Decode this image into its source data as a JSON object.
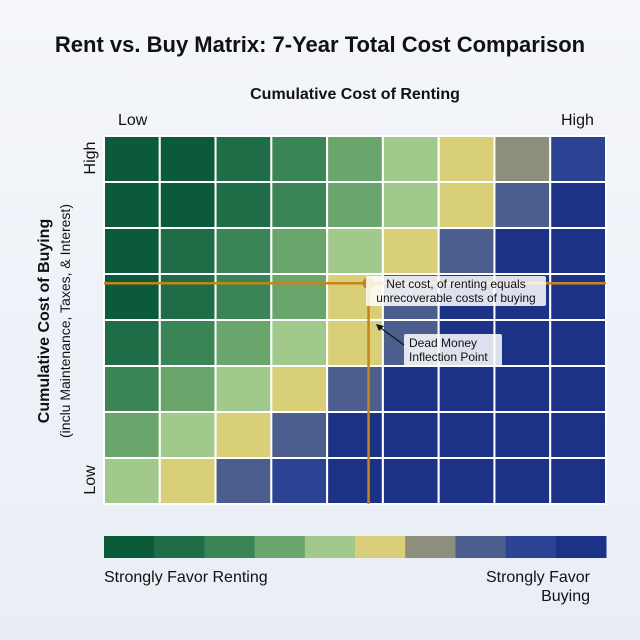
{
  "chart_data": {
    "type": "heatmap",
    "title": "Rent vs. Buy Matrix: 7-Year Total Cost Comparison",
    "xlabel": "Cumulative Cost of Renting",
    "ylabel": "Cumulative Cost of Buying",
    "ylabel_sub": "(inclu Maintenance, Taxes, & Interest)",
    "x_ticks": [
      "Low",
      "High"
    ],
    "y_ticks": [
      "Low",
      "High"
    ],
    "cols": 9,
    "rows": 8,
    "grid_values": [
      [
        0,
        0,
        1,
        2,
        3,
        4,
        5,
        6,
        8
      ],
      [
        0,
        0,
        1,
        2,
        3,
        4,
        5,
        7,
        9
      ],
      [
        0,
        1,
        2,
        3,
        4,
        5,
        7,
        9,
        9
      ],
      [
        0,
        1,
        2,
        3,
        5,
        7,
        9,
        9,
        9
      ],
      [
        1,
        2,
        3,
        4,
        5,
        7,
        9,
        9,
        9
      ],
      [
        2,
        3,
        4,
        5,
        7,
        9,
        9,
        9,
        9
      ],
      [
        3,
        4,
        5,
        7,
        9,
        9,
        9,
        9,
        9
      ],
      [
        4,
        5,
        7,
        8,
        9,
        9,
        9,
        9,
        9
      ]
    ],
    "color_scale": [
      "#0b5a3a",
      "#1e6d47",
      "#3b8456",
      "#6aa56c",
      "#a2c98c",
      "#d9cf78",
      "#8d8f7c",
      "#4c5e8e",
      "#2c4393",
      "#1c3287"
    ],
    "crosshair": {
      "x_fraction": 0.527,
      "y_fraction": 0.4,
      "color": "#c8841a"
    },
    "annotations": [
      {
        "text": "Net cost, of renting equals unrecoverable costs of buying"
      },
      {
        "text": "Dead Money Inflection Point"
      }
    ],
    "legend": {
      "steps": 10,
      "left_label": "Strongly Favor Renting",
      "right_label": "Strongly Favor Buying"
    }
  }
}
